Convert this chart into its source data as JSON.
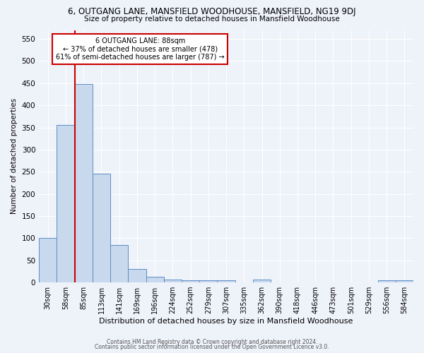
{
  "title1": "6, OUTGANG LANE, MANSFIELD WOODHOUSE, MANSFIELD, NG19 9DJ",
  "title2": "Size of property relative to detached houses in Mansfield Woodhouse",
  "xlabel": "Distribution of detached houses by size in Mansfield Woodhouse",
  "ylabel": "Number of detached properties",
  "footer1": "Contains HM Land Registry data © Crown copyright and database right 2024.",
  "footer2": "Contains public sector information licensed under the Open Government Licence v3.0.",
  "annotation_title": "6 OUTGANG LANE: 88sqm",
  "annotation_line2": "← 37% of detached houses are smaller (478)",
  "annotation_line3": "61% of semi-detached houses are larger (787) →",
  "bar_color": "#c9d9ed",
  "bar_edge_color": "#5b8ec5",
  "vline_color": "#cc0000",
  "annotation_box_color": "#ffffff",
  "annotation_box_edge": "#cc0000",
  "bg_color": "#eef2f9",
  "grid_color": "#ffffff",
  "categories": [
    "30sqm",
    "58sqm",
    "85sqm",
    "113sqm",
    "141sqm",
    "169sqm",
    "196sqm",
    "224sqm",
    "252sqm",
    "279sqm",
    "307sqm",
    "335sqm",
    "362sqm",
    "390sqm",
    "418sqm",
    "446sqm",
    "473sqm",
    "501sqm",
    "529sqm",
    "556sqm",
    "584sqm"
  ],
  "values": [
    100,
    355,
    448,
    245,
    85,
    30,
    13,
    7,
    5,
    5,
    5,
    0,
    6,
    0,
    0,
    0,
    0,
    0,
    0,
    5,
    5
  ],
  "ylim": [
    0,
    570
  ],
  "yticks": [
    0,
    50,
    100,
    150,
    200,
    250,
    300,
    350,
    400,
    450,
    500,
    550
  ]
}
